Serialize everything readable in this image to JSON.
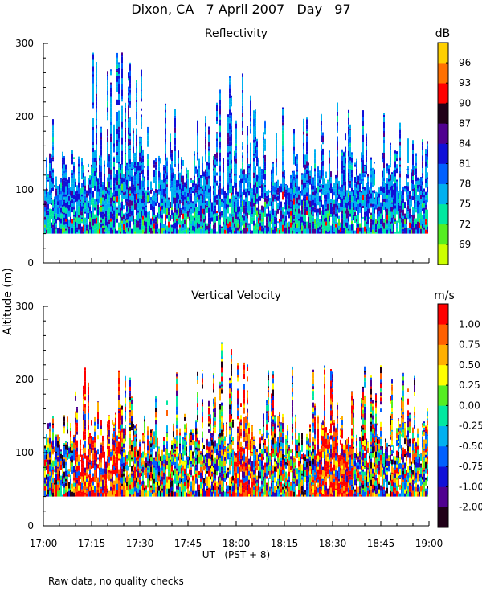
{
  "figure": {
    "title": "Dixon, CA   7 April 2007   Day   97",
    "y_label": "Altitude (m)",
    "x_label": "UT   (PST + 8)",
    "footnote": "Raw data, no quality checks"
  },
  "chart_data": [
    {
      "type": "heatmap",
      "title": "Reflectivity",
      "xlabel": "UT   (PST + 8)",
      "ylabel": "Altitude (m)",
      "xlim": [
        "17:00",
        "19:00"
      ],
      "ylim": [
        0,
        300
      ],
      "y_ticks": [
        "0",
        "100",
        "200",
        "300"
      ],
      "x_ticks": [
        "17:00",
        "17:15",
        "17:30",
        "17:45",
        "18:00",
        "18:15",
        "18:30",
        "18:45",
        "19:00"
      ],
      "colorbar_unit": "dB",
      "colorbar_ticks": [
        "69",
        "72",
        "75",
        "78",
        "81",
        "84",
        "87",
        "90",
        "93",
        "96"
      ],
      "colorbar_colors": [
        "#ccff00",
        "#55ee22",
        "#00e8a0",
        "#00b0f0",
        "#0060ff",
        "#1010d8",
        "#500090",
        "#200018",
        "#ff0000",
        "#ff7000",
        "#ffd000"
      ],
      "data_floor_m": 40,
      "notes": "Dense echo 40-120 m throughout; intermittent plumes up to ~200-300 m, highest near 17:20-17:30."
    },
    {
      "type": "heatmap",
      "title": "Vertical Velocity",
      "xlabel": "UT   (PST + 8)",
      "ylabel": "Altitude (m)",
      "xlim": [
        "17:00",
        "19:00"
      ],
      "ylim": [
        0,
        300
      ],
      "y_ticks": [
        "0",
        "100",
        "200",
        "300"
      ],
      "x_ticks": [
        "17:00",
        "17:15",
        "17:30",
        "17:45",
        "18:00",
        "18:15",
        "18:30",
        "18:45",
        "19:00"
      ],
      "colorbar_unit": "m/s",
      "colorbar_ticks": [
        "-2.00",
        "-1.00",
        "-0.75",
        "-0.50",
        "-0.25",
        "0.00",
        "0.25",
        "0.50",
        "0.75",
        "1.00"
      ],
      "colorbar_colors": [
        "#200018",
        "#500090",
        "#1010d8",
        "#0060ff",
        "#00b0f0",
        "#00e8a0",
        "#55ee22",
        "#ffff00",
        "#ffb000",
        "#ff6000",
        "#ff0000"
      ],
      "data_floor_m": 40,
      "notes": "Strong updrafts (red) around 17:10-17:20, 18:00-18:05 and 18:25-18:40; mixed up/down motion below ~150 m."
    }
  ]
}
